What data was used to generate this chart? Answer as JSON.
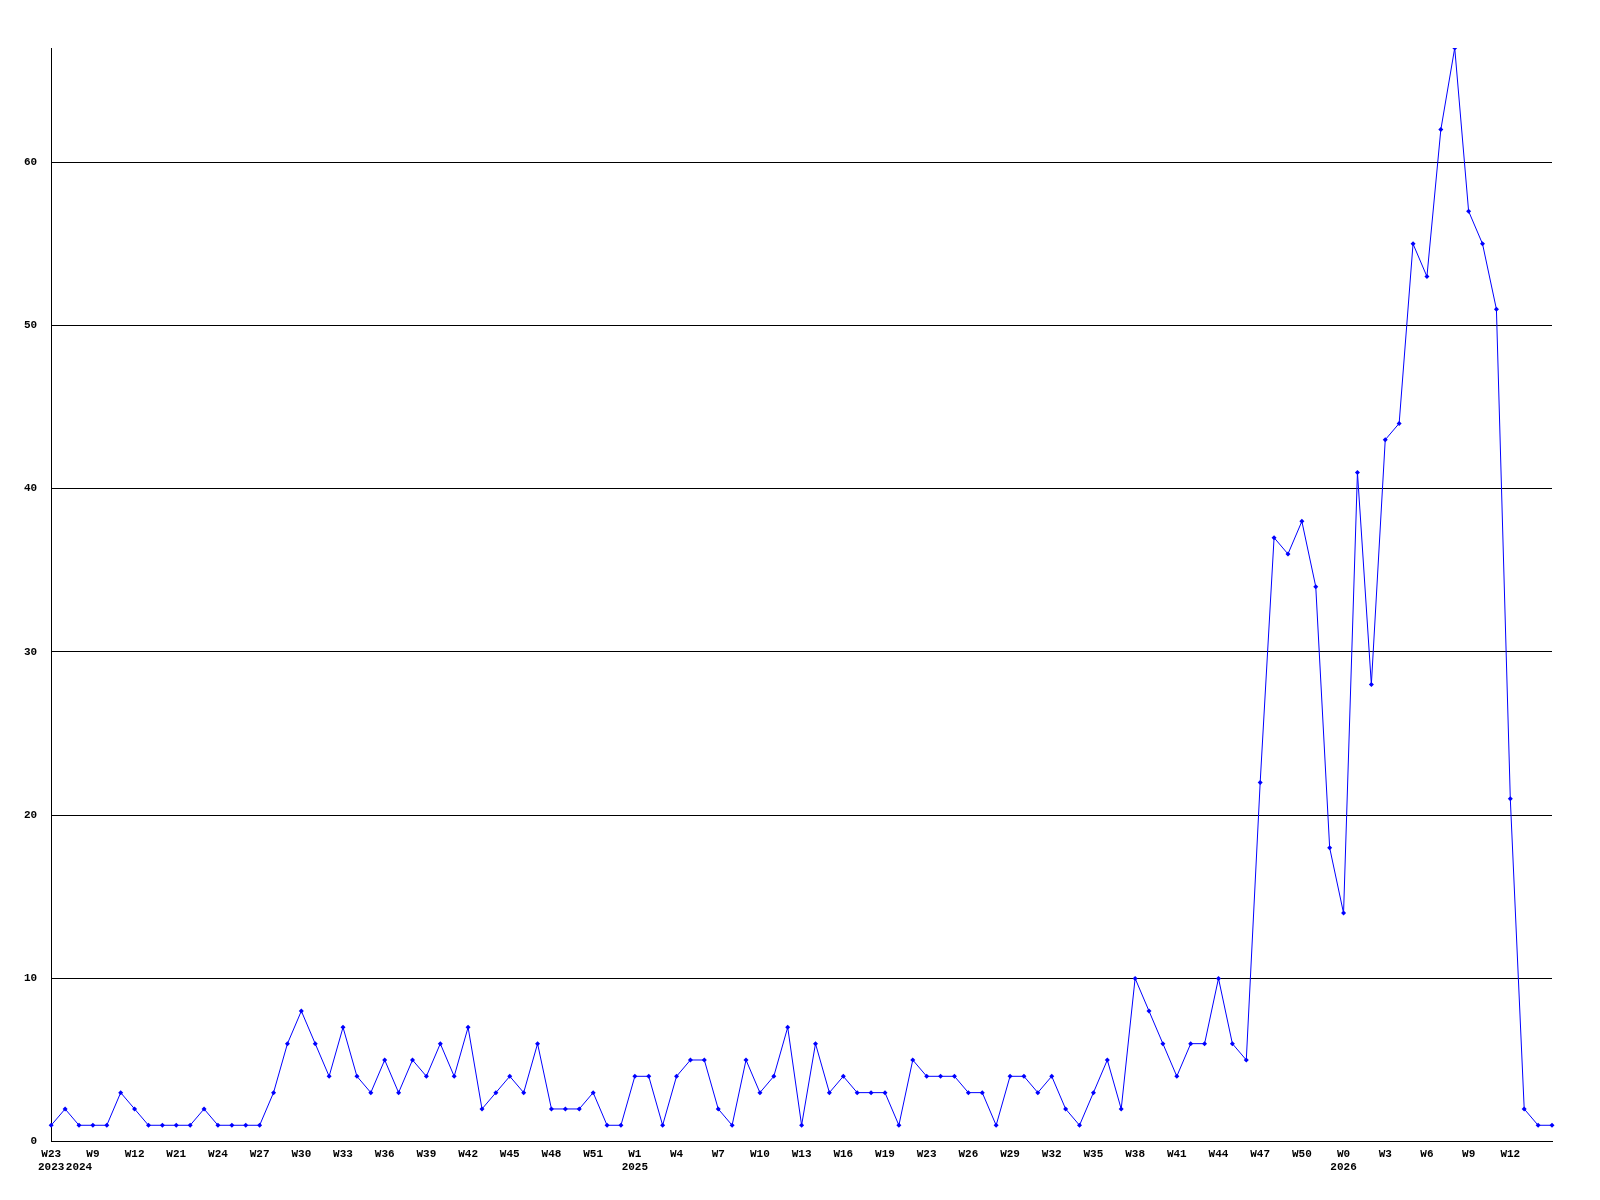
{
  "chart_data": {
    "type": "line",
    "categories": [
      "W23\n2023",
      null,
      "\n2024",
      "W9",
      null,
      null,
      "W12",
      null,
      null,
      "W21",
      null,
      null,
      "W24",
      null,
      null,
      "W27",
      null,
      null,
      "W30",
      null,
      null,
      "W33",
      null,
      null,
      "W36",
      null,
      null,
      "W39",
      null,
      null,
      "W42",
      null,
      null,
      "W45",
      null,
      null,
      "W48",
      null,
      null,
      "W51",
      null,
      null,
      "W1\n2025",
      null,
      null,
      "W4",
      null,
      null,
      "W7",
      null,
      null,
      "W10",
      null,
      null,
      "W13",
      null,
      null,
      "W16",
      null,
      null,
      "W19",
      null,
      null,
      "W23",
      null,
      null,
      "W26",
      null,
      null,
      "W29",
      null,
      null,
      "W32",
      null,
      null,
      "W35",
      null,
      null,
      "W38",
      null,
      null,
      "W41",
      null,
      null,
      "W44",
      null,
      null,
      "W47",
      null,
      null,
      "W50",
      null,
      null,
      "W0\n2026",
      null,
      null,
      "W3",
      null,
      null,
      "W6",
      null,
      null,
      "W9",
      null,
      null,
      "W12",
      null,
      null,
      null
    ],
    "series": [
      {
        "color": "#0000ff",
        "values": [
          1,
          2,
          1,
          1,
          1,
          3,
          2,
          1,
          1,
          1,
          1,
          2,
          1,
          1,
          1,
          1,
          3,
          6,
          8,
          6,
          4,
          7,
          4,
          3,
          5,
          3,
          5,
          4,
          6,
          4,
          7,
          2,
          3,
          4,
          3,
          6,
          2,
          2,
          2,
          3,
          1,
          1,
          4,
          4,
          1,
          4,
          5,
          5,
          2,
          1,
          5,
          3,
          4,
          7,
          1,
          6,
          3,
          4,
          3,
          3,
          3,
          1,
          5,
          4,
          4,
          4,
          3,
          3,
          1,
          4,
          4,
          3,
          4,
          2,
          1,
          3,
          5,
          2,
          10,
          8,
          6,
          4,
          6,
          6,
          10,
          6,
          5,
          22,
          37,
          36,
          38,
          34,
          18,
          14,
          41,
          28,
          43,
          44,
          55,
          53,
          62,
          67,
          57,
          55,
          51,
          21,
          2,
          1,
          1
        ]
      }
    ],
    "ylim": [
      0,
      67
    ],
    "yticks": [
      0,
      10,
      20,
      30,
      40,
      50,
      60
    ],
    "grid": "y",
    "legend": false,
    "marker": "diamond",
    "line_style": "solid"
  }
}
